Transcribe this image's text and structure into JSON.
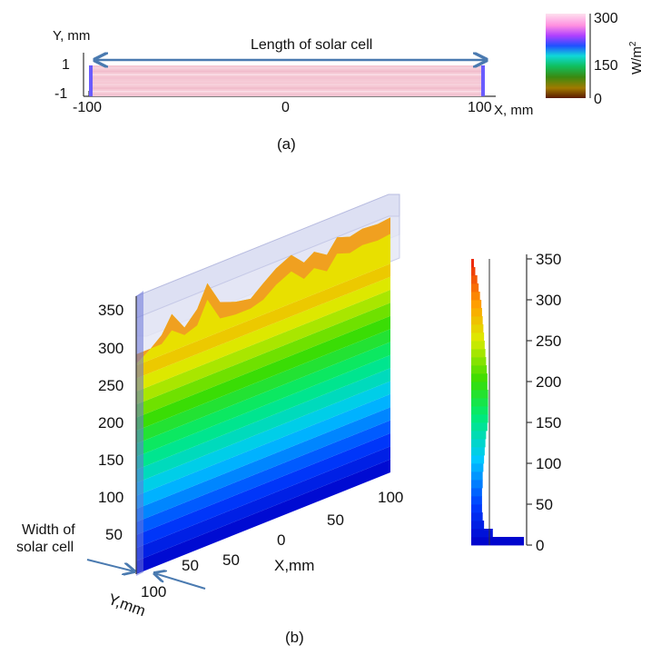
{
  "captions": {
    "a": "(a)",
    "b": "(b)"
  },
  "annotations": {
    "length": "Length of solar cell",
    "width_line1": "Width of",
    "width_line2": "solar cell"
  },
  "chart_data": [
    {
      "panel": "(a)",
      "type": "heatmap",
      "xlabel": "X, mm",
      "ylabel": "Y, mm",
      "x_ticks": [
        "-100",
        "0",
        "100"
      ],
      "y_ticks": [
        "1",
        "-1"
      ],
      "xlim": [
        -100,
        100
      ],
      "ylim": [
        -1,
        1
      ],
      "colorbar": {
        "label": "W/m2",
        "label_base": "W/m",
        "label_sup": "2",
        "ticks": [
          "300",
          "150",
          "0"
        ],
        "range": [
          0,
          300
        ]
      },
      "colors": {
        "field": "#f5c8d4",
        "edge": "#6a5cff",
        "arrow": "#4a7ab0"
      }
    },
    {
      "panel": "(b)",
      "type": "area",
      "xlabel": "X,mm",
      "ylabel": "Y,mm",
      "z_ticks": [
        "350",
        "300",
        "250",
        "200",
        "150",
        "100",
        "50"
      ],
      "x_ticks": [
        "100",
        "50",
        "0",
        "50"
      ],
      "y_ticks": [
        "50",
        "100"
      ],
      "zlim": [
        0,
        350
      ],
      "top_profile": [
        {
          "x": -100,
          "z": 282
        },
        {
          "x": -90,
          "z": 293
        },
        {
          "x": -80,
          "z": 307
        },
        {
          "x": -72,
          "z": 330
        },
        {
          "x": -62,
          "z": 305
        },
        {
          "x": -52,
          "z": 323
        },
        {
          "x": -44,
          "z": 352
        },
        {
          "x": -34,
          "z": 320
        },
        {
          "x": -22,
          "z": 312
        },
        {
          "x": -10,
          "z": 308
        },
        {
          "x": 0,
          "z": 322
        },
        {
          "x": 10,
          "z": 335
        },
        {
          "x": 22,
          "z": 345
        },
        {
          "x": 32,
          "z": 328
        },
        {
          "x": 40,
          "z": 337
        },
        {
          "x": 50,
          "z": 326
        },
        {
          "x": 58,
          "z": 344
        },
        {
          "x": 68,
          "z": 338
        },
        {
          "x": 78,
          "z": 342
        },
        {
          "x": 90,
          "z": 340
        },
        {
          "x": 100,
          "z": 342
        }
      ],
      "colorbar": {
        "type": "bar",
        "ticks": [
          "350",
          "300",
          "250",
          "200",
          "150",
          "100",
          "50",
          "0"
        ],
        "range": [
          0,
          350
        ],
        "bins": [
          {
            "z": 5,
            "count": 78
          },
          {
            "z": 15,
            "count": 32
          },
          {
            "z": 25,
            "count": 19
          },
          {
            "z": 35,
            "count": 17
          },
          {
            "z": 45,
            "count": 16
          },
          {
            "z": 55,
            "count": 16
          },
          {
            "z": 65,
            "count": 16
          },
          {
            "z": 75,
            "count": 17
          },
          {
            "z": 85,
            "count": 17
          },
          {
            "z": 95,
            "count": 18
          },
          {
            "z": 105,
            "count": 19
          },
          {
            "z": 115,
            "count": 20
          },
          {
            "z": 125,
            "count": 21
          },
          {
            "z": 135,
            "count": 22
          },
          {
            "z": 145,
            "count": 24
          },
          {
            "z": 155,
            "count": 25
          },
          {
            "z": 165,
            "count": 25
          },
          {
            "z": 175,
            "count": 25
          },
          {
            "z": 185,
            "count": 25
          },
          {
            "z": 195,
            "count": 24
          },
          {
            "z": 205,
            "count": 24
          },
          {
            "z": 215,
            "count": 23
          },
          {
            "z": 225,
            "count": 22
          },
          {
            "z": 235,
            "count": 21
          },
          {
            "z": 245,
            "count": 20
          },
          {
            "z": 255,
            "count": 19
          },
          {
            "z": 265,
            "count": 18
          },
          {
            "z": 275,
            "count": 17
          },
          {
            "z": 285,
            "count": 16
          },
          {
            "z": 295,
            "count": 15
          },
          {
            "z": 305,
            "count": 13
          },
          {
            "z": 315,
            "count": 11
          },
          {
            "z": 325,
            "count": 9
          },
          {
            "z": 335,
            "count": 6
          },
          {
            "z": 345,
            "count": 4
          }
        ]
      }
    }
  ]
}
